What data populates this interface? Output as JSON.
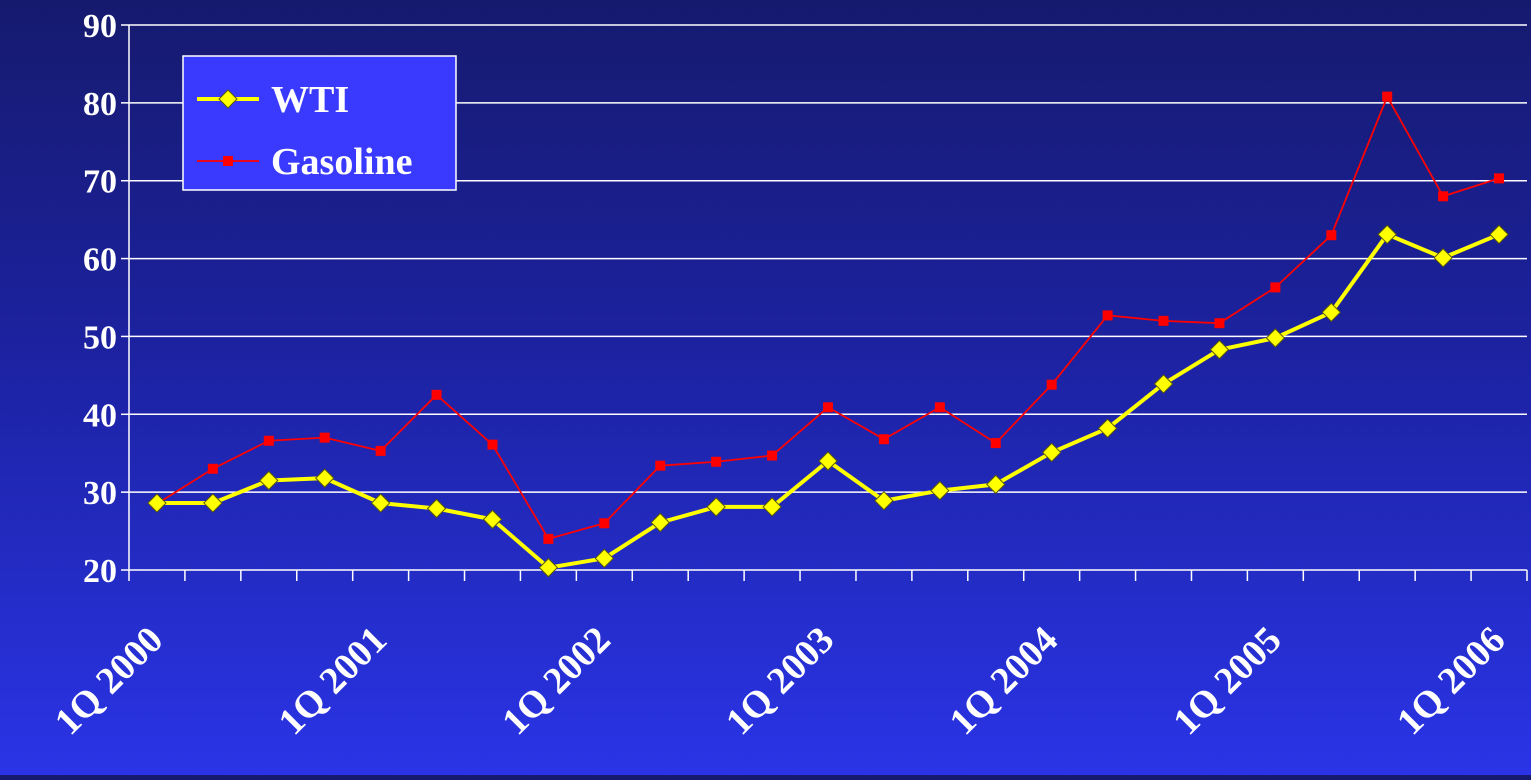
{
  "chart_data": {
    "type": "line",
    "title": "",
    "xlabel": "",
    "ylabel": "",
    "ylim": [
      20,
      90
    ],
    "yticks": [
      20,
      30,
      40,
      50,
      60,
      70,
      80,
      90
    ],
    "x": [
      "1Q 2000",
      "2Q 2000",
      "3Q 2000",
      "4Q 2000",
      "1Q 2001",
      "2Q 2001",
      "3Q 2001",
      "4Q 2001",
      "1Q 2002",
      "2Q 2002",
      "3Q 2002",
      "4Q 2002",
      "1Q 2003",
      "2Q 2003",
      "3Q 2003",
      "4Q 2003",
      "1Q 2004",
      "2Q 2004",
      "3Q 2004",
      "4Q 2004",
      "1Q 2005",
      "2Q 2005",
      "3Q 2005",
      "4Q 2005",
      "1Q 2006"
    ],
    "xtick_labels": [
      "1Q 2000",
      "1Q 2001",
      "1Q 2002",
      "1Q 2003",
      "1Q 2004",
      "1Q 2005",
      "1Q 2006"
    ],
    "grid": true,
    "legend_position": "top-left",
    "series": [
      {
        "name": "WTI",
        "color": "#ffff00",
        "marker": "diamond",
        "values": [
          28.6,
          28.6,
          31.5,
          31.8,
          28.6,
          27.9,
          26.5,
          20.3,
          21.5,
          26.1,
          28.1,
          28.1,
          34.0,
          28.9,
          30.2,
          31.0,
          35.1,
          38.2,
          43.9,
          48.3,
          49.8,
          53.1,
          63.1,
          60.1,
          63.1
        ]
      },
      {
        "name": "Gasoline",
        "color": "#ff0000",
        "marker": "square",
        "values": [
          28.5,
          33.0,
          36.6,
          37.0,
          35.3,
          42.5,
          36.1,
          24.0,
          26.0,
          33.4,
          33.9,
          34.7,
          40.9,
          36.8,
          40.9,
          36.3,
          43.8,
          52.7,
          52.0,
          51.7,
          56.3,
          63.0,
          80.8,
          68.0,
          70.3
        ]
      }
    ]
  }
}
